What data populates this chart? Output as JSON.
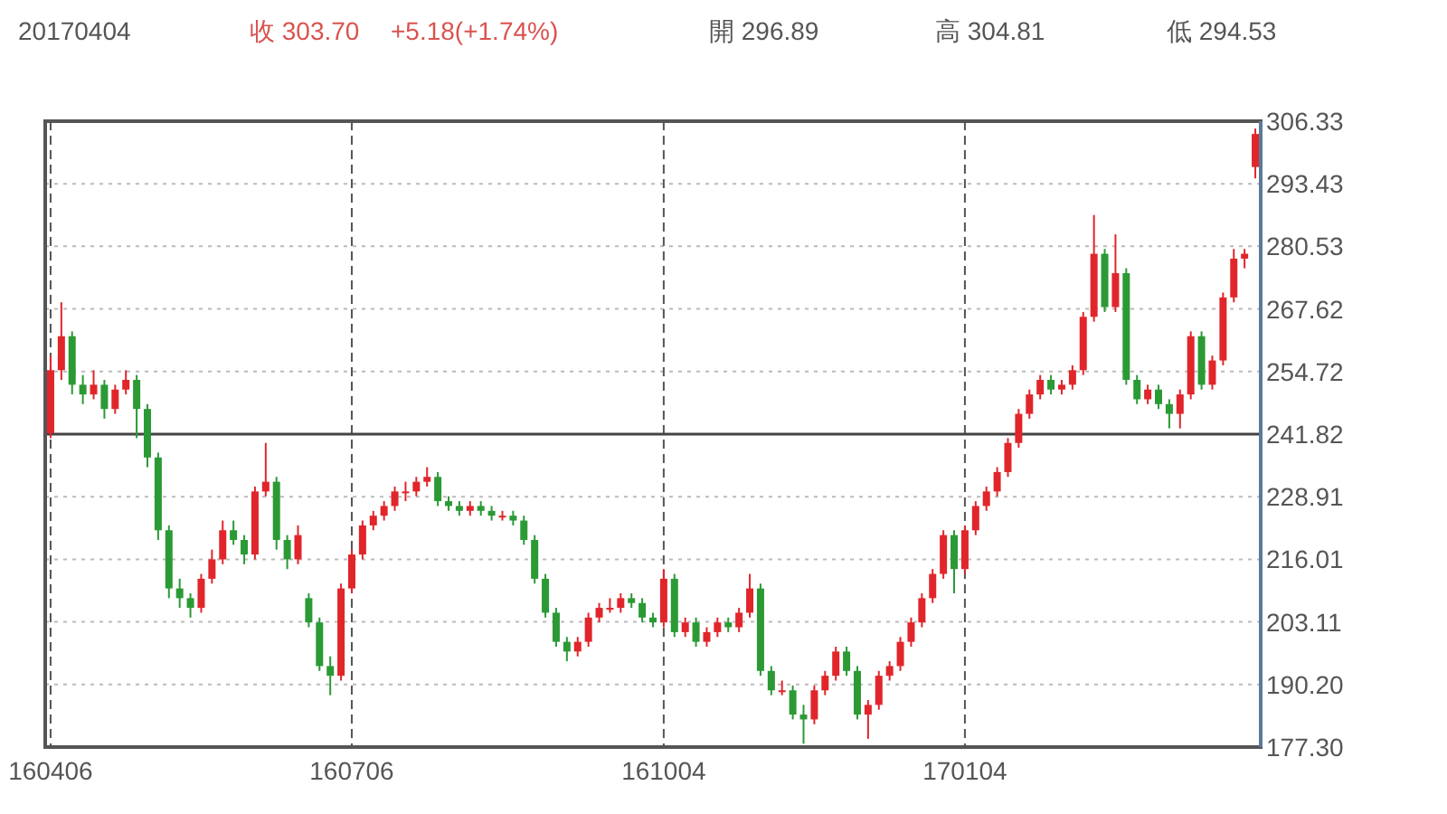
{
  "chart_data": {
    "type": "candlestick",
    "title": "20170404",
    "annotations": [
      "收 303.70",
      "+5.18(+1.74%)",
      "開 296.89",
      "高 304.81",
      "低 294.53"
    ],
    "categories": [
      "160406",
      null,
      null,
      null,
      null,
      null,
      null,
      null,
      null,
      null,
      null,
      null,
      null,
      null,
      null,
      null,
      null,
      null,
      null,
      null,
      null,
      null,
      null,
      null,
      null,
      null,
      null,
      null,
      "160706",
      null,
      null,
      null,
      null,
      null,
      null,
      null,
      null,
      null,
      null,
      null,
      null,
      null,
      null,
      null,
      null,
      null,
      null,
      null,
      null,
      null,
      null,
      null,
      null,
      null,
      null,
      null,
      null,
      "161004",
      null,
      null,
      null,
      null,
      null,
      null,
      null,
      null,
      null,
      null,
      null,
      null,
      null,
      null,
      null,
      null,
      null,
      null,
      null,
      null,
      null,
      null,
      null,
      null,
      null,
      null,
      null,
      "170104",
      null,
      null,
      null,
      null,
      null,
      null,
      null,
      null,
      null,
      null,
      null,
      null,
      null,
      null,
      null,
      null,
      null,
      null,
      null,
      null,
      null,
      null,
      null,
      null,
      null,
      null,
      null
    ],
    "ohlc": [
      [
        242,
        258,
        241,
        255
      ],
      [
        255,
        269,
        253,
        262
      ],
      [
        262,
        263,
        250,
        252
      ],
      [
        252,
        254,
        248,
        250
      ],
      [
        250,
        255,
        249,
        252
      ],
      [
        252,
        253,
        245,
        247
      ],
      [
        247,
        252,
        246,
        251
      ],
      [
        251,
        255,
        250,
        253
      ],
      [
        253,
        254,
        241,
        247
      ],
      [
        247,
        248,
        235,
        237
      ],
      [
        237,
        238,
        220,
        222
      ],
      [
        222,
        223,
        208,
        210
      ],
      [
        210,
        212,
        206,
        208
      ],
      [
        208,
        209,
        204,
        206
      ],
      [
        206,
        213,
        205,
        212
      ],
      [
        212,
        218,
        211,
        216
      ],
      [
        216,
        224,
        215,
        222
      ],
      [
        222,
        224,
        219,
        220
      ],
      [
        220,
        221,
        215,
        217
      ],
      [
        217,
        231,
        216,
        230
      ],
      [
        230,
        240,
        229,
        232
      ],
      [
        232,
        233,
        218,
        220
      ],
      [
        220,
        221,
        214,
        216
      ],
      [
        216,
        223,
        215,
        221
      ],
      [
        208,
        209,
        202,
        203
      ],
      [
        203,
        204,
        193,
        194
      ],
      [
        194,
        196,
        188,
        192
      ],
      [
        192,
        211,
        191,
        210
      ],
      [
        210,
        218,
        209,
        217
      ],
      [
        217,
        224,
        216,
        223
      ],
      [
        223,
        226,
        222,
        225
      ],
      [
        225,
        228,
        224,
        227
      ],
      [
        227,
        231,
        226,
        230
      ],
      [
        230,
        232,
        228,
        230
      ],
      [
        230,
        233,
        229,
        232
      ],
      [
        232,
        235,
        231,
        233
      ],
      [
        233,
        234,
        227,
        228
      ],
      [
        228,
        229,
        226,
        227
      ],
      [
        227,
        228,
        225,
        226
      ],
      [
        226,
        228,
        225,
        227
      ],
      [
        227,
        228,
        225,
        226
      ],
      [
        226,
        227,
        224,
        225
      ],
      [
        225,
        226,
        224,
        225
      ],
      [
        225,
        226,
        223,
        224
      ],
      [
        224,
        225,
        219,
        220
      ],
      [
        220,
        221,
        211,
        212
      ],
      [
        212,
        213,
        204,
        205
      ],
      [
        205,
        206,
        198,
        199
      ],
      [
        199,
        200,
        195,
        197
      ],
      [
        197,
        200,
        196,
        199
      ],
      [
        199,
        205,
        198,
        204
      ],
      [
        204,
        207,
        203,
        206
      ],
      [
        206,
        208,
        205,
        206
      ],
      [
        206,
        209,
        205,
        208
      ],
      [
        208,
        209,
        206,
        207
      ],
      [
        207,
        208,
        203,
        204
      ],
      [
        204,
        205,
        202,
        203
      ],
      [
        203,
        214,
        202,
        212
      ],
      [
        212,
        213,
        200,
        201
      ],
      [
        201,
        204,
        200,
        203
      ],
      [
        203,
        204,
        198,
        199
      ],
      [
        199,
        202,
        198,
        201
      ],
      [
        201,
        204,
        200,
        203
      ],
      [
        203,
        204,
        201,
        202
      ],
      [
        202,
        206,
        201,
        205
      ],
      [
        205,
        213,
        204,
        210
      ],
      [
        210,
        211,
        192,
        193
      ],
      [
        193,
        194,
        188,
        189
      ],
      [
        189,
        191,
        188,
        189
      ],
      [
        189,
        190,
        183,
        184
      ],
      [
        184,
        186,
        178,
        183
      ],
      [
        183,
        190,
        182,
        189
      ],
      [
        189,
        193,
        188,
        192
      ],
      [
        192,
        198,
        191,
        197
      ],
      [
        197,
        198,
        192,
        193
      ],
      [
        193,
        194,
        183,
        184
      ],
      [
        184,
        187,
        179,
        186
      ],
      [
        186,
        193,
        185,
        192
      ],
      [
        192,
        195,
        191,
        194
      ],
      [
        194,
        200,
        193,
        199
      ],
      [
        199,
        204,
        198,
        203
      ],
      [
        203,
        209,
        202,
        208
      ],
      [
        208,
        214,
        207,
        213
      ],
      [
        213,
        222,
        212,
        221
      ],
      [
        221,
        222,
        209,
        214
      ],
      [
        214,
        223,
        213,
        222
      ],
      [
        222,
        228,
        221,
        227
      ],
      [
        227,
        231,
        226,
        230
      ],
      [
        230,
        235,
        229,
        234
      ],
      [
        234,
        241,
        233,
        240
      ],
      [
        240,
        247,
        239,
        246
      ],
      [
        246,
        251,
        245,
        250
      ],
      [
        250,
        254,
        249,
        253
      ],
      [
        253,
        254,
        250,
        251
      ],
      [
        251,
        253,
        250,
        252
      ],
      [
        252,
        256,
        251,
        255
      ],
      [
        255,
        267,
        254,
        266
      ],
      [
        266,
        287,
        265,
        279
      ],
      [
        279,
        280,
        267,
        268
      ],
      [
        268,
        283,
        267,
        275
      ],
      [
        275,
        276,
        252,
        253
      ],
      [
        253,
        254,
        248,
        249
      ],
      [
        249,
        252,
        248,
        251
      ],
      [
        251,
        252,
        247,
        248
      ],
      [
        248,
        249,
        243,
        246
      ],
      [
        246,
        251,
        243,
        250
      ],
      [
        250,
        263,
        249,
        262
      ],
      [
        262,
        263,
        251,
        252
      ],
      [
        252,
        258,
        251,
        257
      ],
      [
        257,
        271,
        256,
        270
      ],
      [
        270,
        280,
        269,
        278
      ],
      [
        278,
        280,
        276,
        279
      ],
      [
        296.89,
        304.81,
        294.53,
        303.7
      ]
    ],
    "ylim": [
      177.3,
      306.33
    ],
    "yticks": [
      {
        "value": 177.3,
        "label": "177.30"
      },
      {
        "value": 190.2,
        "label": "190.20"
      },
      {
        "value": 203.11,
        "label": "203.11"
      },
      {
        "value": 216.01,
        "label": "216.01"
      },
      {
        "value": 228.91,
        "label": "228.91"
      },
      {
        "value": 241.82,
        "label": "241.82"
      },
      {
        "value": 254.72,
        "label": "254.72"
      },
      {
        "value": 267.62,
        "label": "267.62"
      },
      {
        "value": 280.53,
        "label": "280.53"
      },
      {
        "value": 293.43,
        "label": "293.43"
      },
      {
        "value": 306.33,
        "label": "306.33"
      }
    ],
    "ref_lines": [
      {
        "axis": "y",
        "value": 241.82,
        "color": "#444444",
        "line_style": "solid"
      }
    ],
    "grid": true
  }
}
